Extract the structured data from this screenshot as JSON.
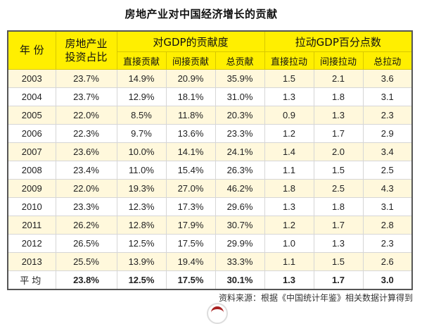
{
  "title": "房地产业对中国经济增长的贡献",
  "table": {
    "header": {
      "year": "年 份",
      "share_line1": "房地产业",
      "share_line2": "投资占比",
      "group_contribution": "对GDP的贡献度",
      "group_pull": "拉动GDP百分点数",
      "sub": [
        "直接贡献",
        "间接贡献",
        "总贡献",
        "直接拉动",
        "间接拉动",
        "总拉动"
      ]
    },
    "rows": [
      {
        "year": "2003",
        "share": "23.7%",
        "direct": "14.9%",
        "indirect": "20.9%",
        "total": "35.9%",
        "pull_direct": "1.5",
        "pull_indirect": "2.1",
        "pull_total": "3.6"
      },
      {
        "year": "2004",
        "share": "23.7%",
        "direct": "12.9%",
        "indirect": "18.1%",
        "total": "31.0%",
        "pull_direct": "1.3",
        "pull_indirect": "1.8",
        "pull_total": "3.1"
      },
      {
        "year": "2005",
        "share": "22.0%",
        "direct": "8.5%",
        "indirect": "11.8%",
        "total": "20.3%",
        "pull_direct": "0.9",
        "pull_indirect": "1.3",
        "pull_total": "2.3"
      },
      {
        "year": "2006",
        "share": "22.3%",
        "direct": "9.7%",
        "indirect": "13.6%",
        "total": "23.3%",
        "pull_direct": "1.2",
        "pull_indirect": "1.7",
        "pull_total": "2.9"
      },
      {
        "year": "2007",
        "share": "23.6%",
        "direct": "10.0%",
        "indirect": "14.1%",
        "total": "24.1%",
        "pull_direct": "1.4",
        "pull_indirect": "2.0",
        "pull_total": "3.4"
      },
      {
        "year": "2008",
        "share": "23.4%",
        "direct": "11.0%",
        "indirect": "15.4%",
        "total": "26.3%",
        "pull_direct": "1.1",
        "pull_indirect": "1.5",
        "pull_total": "2.5"
      },
      {
        "year": "2009",
        "share": "22.0%",
        "direct": "19.3%",
        "indirect": "27.0%",
        "total": "46.2%",
        "pull_direct": "1.8",
        "pull_indirect": "2.5",
        "pull_total": "4.3"
      },
      {
        "year": "2010",
        "share": "23.3%",
        "direct": "12.3%",
        "indirect": "17.3%",
        "total": "29.6%",
        "pull_direct": "1.3",
        "pull_indirect": "1.8",
        "pull_total": "3.1"
      },
      {
        "year": "2011",
        "share": "26.2%",
        "direct": "12.8%",
        "indirect": "17.9%",
        "total": "30.7%",
        "pull_direct": "1.2",
        "pull_indirect": "1.7",
        "pull_total": "2.8"
      },
      {
        "year": "2012",
        "share": "26.5%",
        "direct": "12.5%",
        "indirect": "17.5%",
        "total": "29.9%",
        "pull_direct": "1.0",
        "pull_indirect": "1.3",
        "pull_total": "2.3"
      },
      {
        "year": "2013",
        "share": "25.5%",
        "direct": "13.9%",
        "indirect": "19.4%",
        "total": "33.3%",
        "pull_direct": "1.1",
        "pull_indirect": "1.5",
        "pull_total": "2.6"
      }
    ],
    "average": {
      "year": "平均",
      "share": "23.8%",
      "direct": "12.5%",
      "indirect": "17.5%",
      "total": "30.1%",
      "pull_direct": "1.3",
      "pull_indirect": "1.7",
      "pull_total": "3.0"
    }
  },
  "source": "资料来源：根据《中国统计年鉴》相关数据计算得到",
  "colors": {
    "header_bg": "#FFEF00",
    "alt_row_bg": "#FFF8DC",
    "logo_accent": "#A82020"
  }
}
